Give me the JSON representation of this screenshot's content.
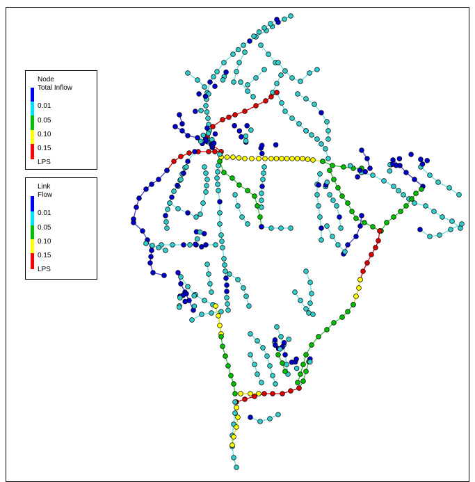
{
  "node_legend": {
    "title_line1": "Node",
    "title_line2": "Total Inflow",
    "labels": [
      "0.01",
      "0.05",
      "0.10",
      "0.15",
      "LPS"
    ],
    "colors": [
      "#0000ff",
      "#00e0ff",
      "#00c000",
      "#ffff00",
      "#ff0000"
    ]
  },
  "link_legend": {
    "title_line1": "Link",
    "title_line2": "Flow",
    "labels": [
      "0.01",
      "0.05",
      "0.10",
      "0.15",
      "LPS"
    ],
    "colors": [
      "#0000ff",
      "#00e0ff",
      "#00c000",
      "#ffff00",
      "#ff0000"
    ]
  },
  "colors": {
    "very_low": "#0000cc",
    "low": "#33cccc",
    "mid": "#00c000",
    "high": "#ffff00",
    "very_high": "#e00000"
  }
}
